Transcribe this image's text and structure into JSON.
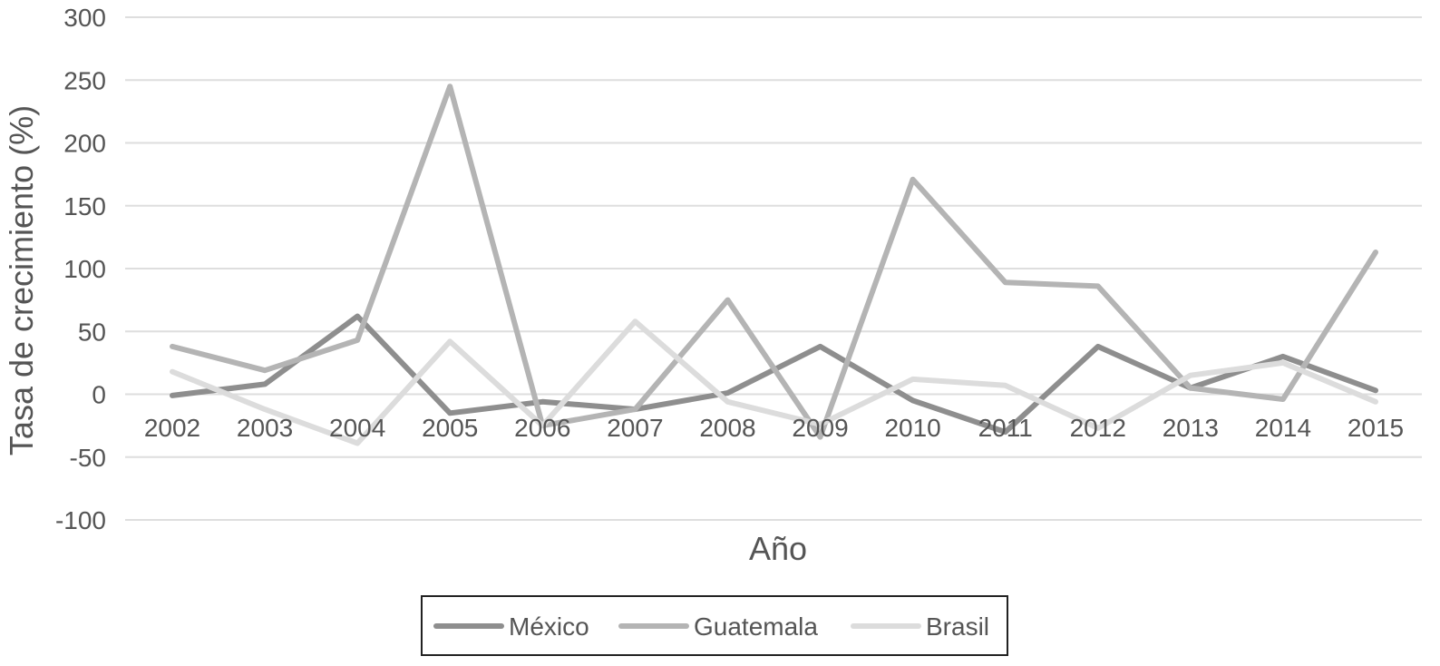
{
  "chart_data": {
    "type": "line",
    "title": "",
    "xlabel": "Año",
    "ylabel": "Tasa de crecimiento (%)",
    "ylim": [
      -100,
      300
    ],
    "yticks": [
      "300",
      "250",
      "200",
      "150",
      "100",
      "50",
      "0",
      "-50",
      "-100"
    ],
    "yticks_values": [
      300,
      250,
      200,
      150,
      100,
      50,
      0,
      -50,
      -100
    ],
    "categories": [
      "2002",
      "2003",
      "2004",
      "2005",
      "2006",
      "2007",
      "2008",
      "2009",
      "2010",
      "2011",
      "2012",
      "2013",
      "2014",
      "2015"
    ],
    "grid": true,
    "legend_position": "bottom",
    "series": [
      {
        "name": "México",
        "color": "#8e8e8e",
        "values": [
          -1,
          8,
          62,
          -15,
          -6,
          -12,
          1,
          38,
          -5,
          -30,
          38,
          5,
          30,
          3
        ]
      },
      {
        "name": "Guatemala",
        "color": "#b4b4b4",
        "values": [
          38,
          19,
          43,
          245,
          -25,
          -12,
          75,
          -34,
          171,
          89,
          86,
          5,
          -4,
          113
        ]
      },
      {
        "name": "Brasil",
        "color": "#dcdcdc",
        "values": [
          18,
          -12,
          -39,
          42,
          -25,
          58,
          -6,
          -24,
          12,
          7,
          -27,
          15,
          25,
          -6
        ]
      }
    ]
  }
}
